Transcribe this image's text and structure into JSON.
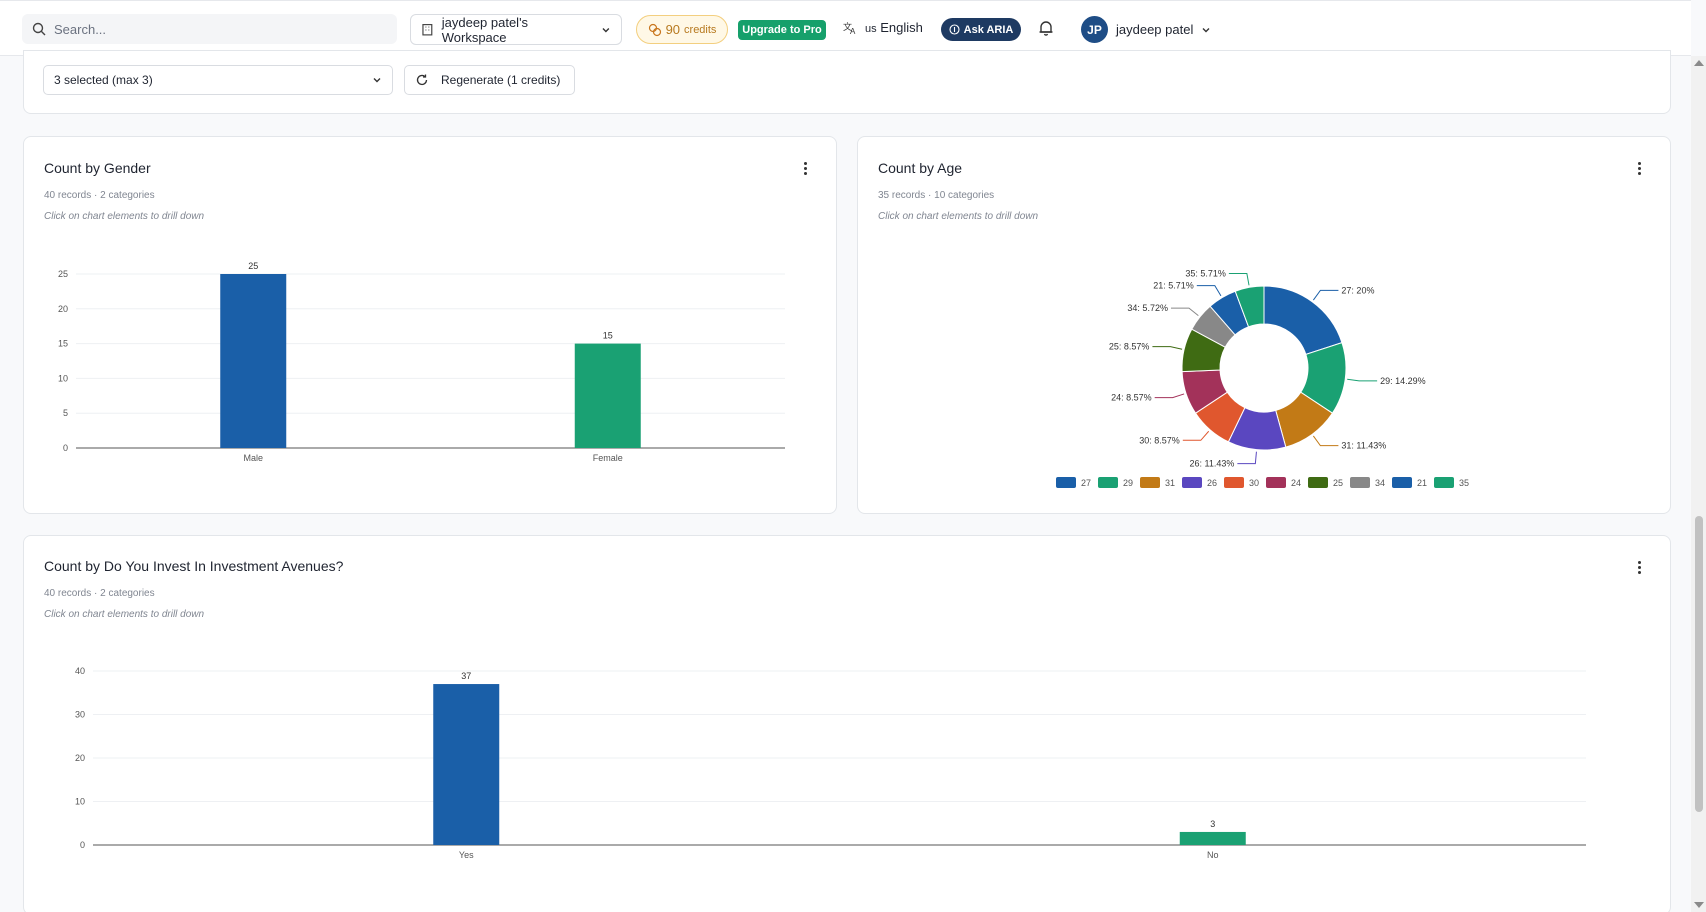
{
  "topbar": {
    "search_placeholder": "Search...",
    "workspace": "jaydeep patel's Workspace",
    "credits_value": "90",
    "credits_label": "credits",
    "upgrade": "Upgrade to Pro",
    "language_code": "us",
    "language": "English",
    "aria": "Ask ARIA",
    "user_initials": "JP",
    "user_name": "jaydeep patel"
  },
  "controls": {
    "selection": "3 selected (max 3)",
    "regenerate": "Regenerate (1 credits)"
  },
  "charts": {
    "gender": {
      "title": "Count by Gender",
      "meta": "40 records · 2 categories",
      "hint": "Click on chart elements to drill down"
    },
    "age": {
      "title": "Count by Age",
      "meta": "35 records · 10 categories",
      "hint": "Click on chart elements to drill down"
    },
    "invest": {
      "title": "Count by Do You Invest In Investment Avenues?",
      "meta": "40 records · 2 categories",
      "hint": "Click on chart elements to drill down"
    }
  },
  "chart_data": [
    {
      "type": "bar",
      "categories": [
        "Male",
        "Female"
      ],
      "values": [
        25,
        15
      ],
      "data_labels": [
        "25",
        "15"
      ],
      "ylim": [
        0,
        25
      ],
      "yticks": [
        "0",
        "5",
        "10",
        "15",
        "20",
        "25"
      ],
      "colors": [
        "#1a5fa8",
        "#1aa173"
      ],
      "grid": true
    },
    {
      "type": "pie",
      "donut": true,
      "categories": [
        "27",
        "29",
        "31",
        "26",
        "30",
        "24",
        "25",
        "34",
        "21",
        "35"
      ],
      "values": [
        20,
        14.29,
        11.43,
        11.43,
        8.57,
        8.57,
        8.57,
        5.72,
        5.71,
        5.71
      ],
      "slice_labels": [
        "27: 20%",
        "29: 14.29%",
        "31: 11.43%",
        "26: 11.43%",
        "30: 8.57%",
        "24: 8.57%",
        "25: 8.57%",
        "34: 5.72%",
        "21: 5.71%",
        "35: 5.71%"
      ],
      "colors": [
        "#1a5fa8",
        "#1aa173",
        "#c27a16",
        "#5a47c0",
        "#e0572e",
        "#a3325a",
        "#3f6b13",
        "#888888",
        "#1a5fa8",
        "#1aa173"
      ],
      "legend_position": "bottom"
    },
    {
      "type": "bar",
      "categories": [
        "Yes",
        "No"
      ],
      "values": [
        37,
        3
      ],
      "data_labels": [
        "37",
        "3"
      ],
      "ylim": [
        0,
        40
      ],
      "yticks": [
        "0",
        "10",
        "20",
        "30",
        "40"
      ],
      "colors": [
        "#1a5fa8",
        "#1aa173"
      ],
      "grid": true
    }
  ]
}
